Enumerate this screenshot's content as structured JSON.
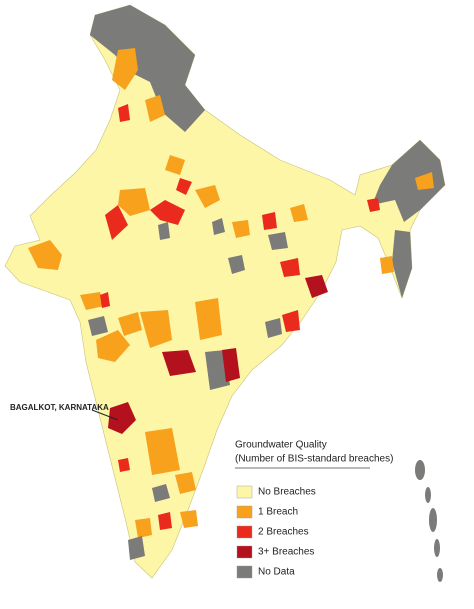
{
  "annotation": "BAGALKOT, KARNATAKA",
  "legend": {
    "title": "Groundwater Quality",
    "subtitle": "(Number of BIS-standard breaches)",
    "items": [
      {
        "label": "No Breaches",
        "color": "#fdf6a6"
      },
      {
        "label": "1 Breach",
        "color": "#f7a11d"
      },
      {
        "label": "2 Breaches",
        "color": "#ea2a1c"
      },
      {
        "label": "3+ Breaches",
        "color": "#b3111d"
      },
      {
        "label": "No Data",
        "color": "#7b7b79"
      }
    ]
  }
}
